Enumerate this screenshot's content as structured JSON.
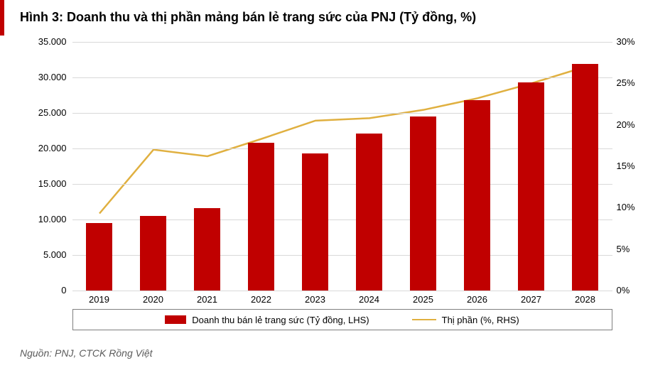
{
  "title": "Hình 3: Doanh thu và thị phần mảng bán lẻ trang sức của PNJ (Tỷ đồng, %)",
  "title_color": "#000000",
  "title_fontsize": 18,
  "accent_color": "#c00000",
  "source": "Nguồn: PNJ, CTCK Rồng Việt",
  "chart": {
    "type": "bar_line_dual_axis",
    "background_color": "#ffffff",
    "grid_color": "#d9d9d9",
    "axis_font_size": 13,
    "categories": [
      "2019",
      "2020",
      "2021",
      "2022",
      "2023",
      "2024",
      "2025",
      "2026",
      "2027",
      "2028"
    ],
    "bars": {
      "label": "Doanh thu bán lẻ trang sức (Tỷ đồng, LHS)",
      "color": "#c00000",
      "values": [
        9500,
        10500,
        11600,
        20800,
        19300,
        22100,
        24500,
        26800,
        29300,
        31900
      ],
      "bar_width_ratio": 0.48
    },
    "line": {
      "label": "Thị phần (%, RHS)",
      "color": "#e0b040",
      "line_width": 2.5,
      "values_pct": [
        9.3,
        17.0,
        16.2,
        18.3,
        20.5,
        20.8,
        21.8,
        23.2,
        25.0,
        27.0
      ]
    },
    "y_left": {
      "min": 0,
      "max": 35000,
      "step": 5000,
      "tick_labels": [
        "0",
        "5.000",
        "10.000",
        "15.000",
        "20.000",
        "25.000",
        "30.000",
        "35.000"
      ]
    },
    "y_right": {
      "min": 0,
      "max": 30,
      "step": 5,
      "tick_labels": [
        "0%",
        "5%",
        "10%",
        "15%",
        "20%",
        "25%",
        "30%"
      ]
    },
    "legend_border_color": "#7f7f7f"
  }
}
